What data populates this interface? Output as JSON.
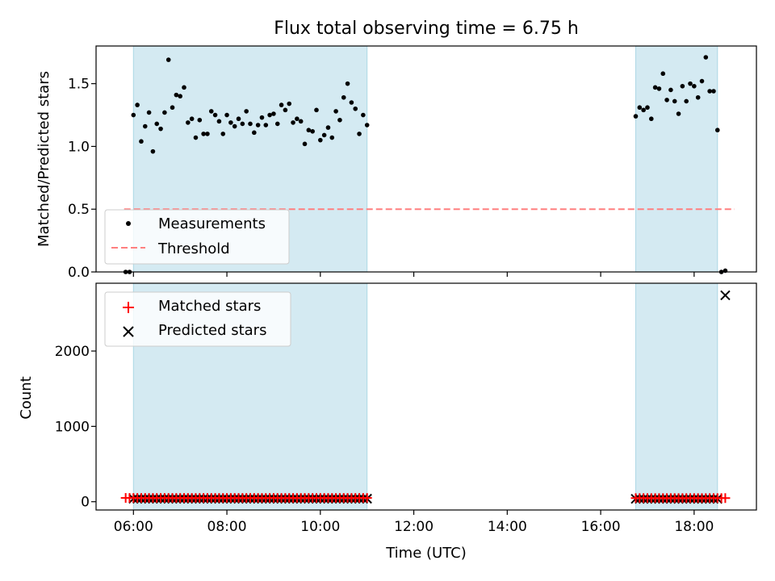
{
  "chart_data": [
    {
      "type": "scatter",
      "title": "Flux total observing time = 6.75 h",
      "xlabel": "",
      "ylabel": "Matched/Predicted stars",
      "xlim": [
        "05:12",
        "19:20"
      ],
      "ylim": [
        0,
        1.8
      ],
      "yticks": [
        0.0,
        0.5,
        1.0,
        1.5
      ],
      "ytick_labels": [
        "0.0",
        "0.5",
        "1.0",
        "1.5"
      ],
      "grid": false,
      "legend_placement": "lower-left",
      "shaded_intervals": [
        [
          "06:00",
          "11:00"
        ],
        [
          "16:45",
          "18:30"
        ]
      ],
      "shade_color": "#add8e6",
      "series": [
        {
          "name": "Measurements",
          "kind": "scatter",
          "color": "#000000",
          "points": [
            [
              "05:50",
              0.0
            ],
            [
              "05:55",
              0.0
            ],
            [
              "06:00",
              1.25
            ],
            [
              "06:05",
              1.33
            ],
            [
              "06:10",
              1.04
            ],
            [
              "06:15",
              1.16
            ],
            [
              "06:20",
              1.27
            ],
            [
              "06:25",
              0.96
            ],
            [
              "06:30",
              1.18
            ],
            [
              "06:35",
              1.14
            ],
            [
              "06:40",
              1.27
            ],
            [
              "06:45",
              1.69
            ],
            [
              "06:50",
              1.31
            ],
            [
              "06:55",
              1.41
            ],
            [
              "07:00",
              1.4
            ],
            [
              "07:05",
              1.47
            ],
            [
              "07:10",
              1.19
            ],
            [
              "07:15",
              1.22
            ],
            [
              "07:20",
              1.07
            ],
            [
              "07:25",
              1.21
            ],
            [
              "07:30",
              1.1
            ],
            [
              "07:35",
              1.1
            ],
            [
              "07:40",
              1.28
            ],
            [
              "07:45",
              1.25
            ],
            [
              "07:50",
              1.2
            ],
            [
              "07:55",
              1.1
            ],
            [
              "08:00",
              1.25
            ],
            [
              "08:05",
              1.19
            ],
            [
              "08:10",
              1.16
            ],
            [
              "08:15",
              1.22
            ],
            [
              "08:20",
              1.18
            ],
            [
              "08:25",
              1.28
            ],
            [
              "08:30",
              1.18
            ],
            [
              "08:35",
              1.11
            ],
            [
              "08:40",
              1.17
            ],
            [
              "08:45",
              1.23
            ],
            [
              "08:50",
              1.17
            ],
            [
              "08:55",
              1.25
            ],
            [
              "09:00",
              1.26
            ],
            [
              "09:05",
              1.18
            ],
            [
              "09:10",
              1.33
            ],
            [
              "09:15",
              1.29
            ],
            [
              "09:20",
              1.34
            ],
            [
              "09:25",
              1.19
            ],
            [
              "09:30",
              1.22
            ],
            [
              "09:35",
              1.2
            ],
            [
              "09:40",
              1.02
            ],
            [
              "09:45",
              1.13
            ],
            [
              "09:50",
              1.12
            ],
            [
              "09:55",
              1.29
            ],
            [
              "10:00",
              1.05
            ],
            [
              "10:05",
              1.09
            ],
            [
              "10:10",
              1.15
            ],
            [
              "10:15",
              1.07
            ],
            [
              "10:20",
              1.28
            ],
            [
              "10:25",
              1.21
            ],
            [
              "10:30",
              1.39
            ],
            [
              "10:35",
              1.5
            ],
            [
              "10:40",
              1.35
            ],
            [
              "10:45",
              1.3
            ],
            [
              "10:50",
              1.1
            ],
            [
              "10:55",
              1.25
            ],
            [
              "11:00",
              1.17
            ],
            [
              "16:45",
              1.24
            ],
            [
              "16:50",
              1.31
            ],
            [
              "16:55",
              1.29
            ],
            [
              "17:00",
              1.31
            ],
            [
              "17:05",
              1.22
            ],
            [
              "17:10",
              1.47
            ],
            [
              "17:15",
              1.46
            ],
            [
              "17:20",
              1.58
            ],
            [
              "17:25",
              1.37
            ],
            [
              "17:30",
              1.45
            ],
            [
              "17:35",
              1.36
            ],
            [
              "17:40",
              1.26
            ],
            [
              "17:45",
              1.48
            ],
            [
              "17:50",
              1.36
            ],
            [
              "17:55",
              1.5
            ],
            [
              "18:00",
              1.48
            ],
            [
              "18:05",
              1.39
            ],
            [
              "18:10",
              1.52
            ],
            [
              "18:15",
              1.71
            ],
            [
              "18:20",
              1.44
            ],
            [
              "18:25",
              1.44
            ],
            [
              "18:30",
              1.13
            ],
            [
              "18:35",
              0.0
            ],
            [
              "18:40",
              0.01
            ]
          ]
        },
        {
          "name": "Threshold",
          "kind": "line",
          "style": "dashed",
          "color": "#ff7f7f",
          "points": [
            [
              "05:48",
              0.5
            ],
            [
              "18:52",
              0.5
            ]
          ]
        }
      ]
    },
    {
      "type": "scatter",
      "title": "",
      "xlabel": "Time (UTC)",
      "ylabel": "Count",
      "xlim": [
        "05:12",
        "19:20"
      ],
      "ylim": [
        -110,
        2900
      ],
      "yticks": [
        0,
        1000,
        2000
      ],
      "ytick_labels": [
        "0",
        "1000",
        "2000"
      ],
      "xtick_labels": [
        "06:00",
        "08:00",
        "10:00",
        "12:00",
        "14:00",
        "16:00",
        "18:00"
      ],
      "grid": false,
      "legend_placement": "upper-left",
      "shaded_intervals": [
        [
          "06:00",
          "11:00"
        ],
        [
          "16:45",
          "18:30"
        ]
      ],
      "shade_color": "#add8e6",
      "series": [
        {
          "name": "Matched stars",
          "kind": "scatter",
          "marker": "plus",
          "color": "#ff0000",
          "ranges": [
            {
              "from": "05:50",
              "to": "11:00",
              "step_min": 5,
              "value": 50
            },
            {
              "from": "16:45",
              "to": "18:40",
              "step_min": 5,
              "value": 48
            }
          ]
        },
        {
          "name": "Predicted stars",
          "kind": "scatter",
          "marker": "x",
          "color": "#000000",
          "ranges": [
            {
              "from": "06:00",
              "to": "11:00",
              "step_min": 5,
              "value": 40
            },
            {
              "from": "16:45",
              "to": "18:30",
              "step_min": 5,
              "value": 38
            }
          ],
          "points": [
            [
              "18:40",
              2740
            ]
          ]
        }
      ]
    }
  ]
}
